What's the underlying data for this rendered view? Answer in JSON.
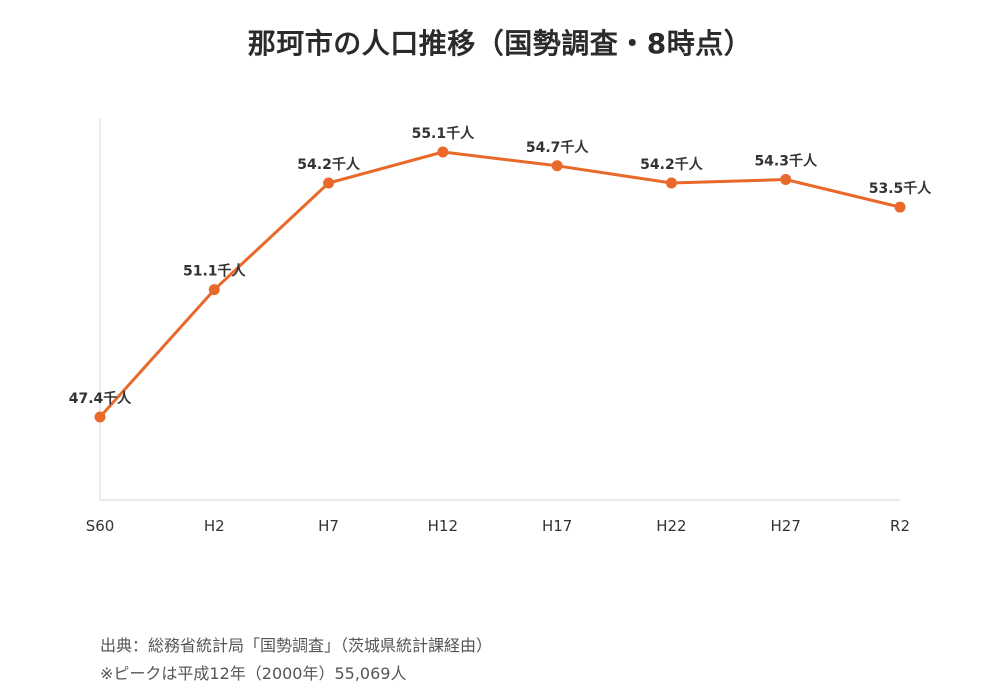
{
  "title": "那珂市の人口推移（国勢調査・8時点）",
  "footer": {
    "source": "出典：総務省統計局「国勢調査」（茨城県統計課経由）",
    "note": "※ピークは平成12年（2000年）55,069人"
  },
  "colors": {
    "line": "#E8692A",
    "axis": "#d9d9d9",
    "tick_label": "#333333",
    "data_label": "#333333"
  },
  "chart_data": {
    "type": "line",
    "categories": [
      "S60",
      "H2",
      "H7",
      "H12",
      "H17",
      "H22",
      "H27",
      "R2"
    ],
    "series": [
      {
        "values": [
          47.4,
          51.1,
          54.2,
          55.1,
          54.7,
          54.2,
          54.3,
          53.5
        ]
      }
    ],
    "data_labels": [
      "47.4千人",
      "51.1千人",
      "54.2千人",
      "55.1千人",
      "54.7千人",
      "54.2千人",
      "54.3千人",
      "53.5千人"
    ],
    "title": "那珂市の人口推移（国勢調査・8時点）",
    "xlabel": "",
    "ylabel": "",
    "grid": false,
    "legend": "none"
  }
}
